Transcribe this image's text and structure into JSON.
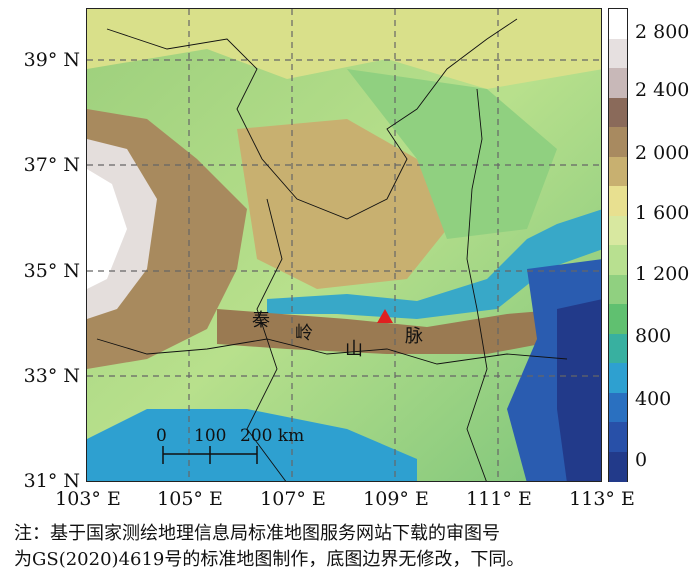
{
  "map": {
    "lat_labels": [
      "39° N",
      "37° N",
      "35° N",
      "33° N",
      "31° N"
    ],
    "lon_labels": [
      "103° E",
      "105° E",
      "107° E",
      "109° E",
      "111° E",
      "113° E"
    ],
    "range_chars": [
      "秦",
      "岭",
      "山",
      "脉"
    ],
    "marker": "red-triangle",
    "scale_labels": [
      "0",
      "100",
      "200 km"
    ]
  },
  "legend": {
    "labels": [
      "2 800",
      "2 400",
      "2 000",
      "1 600",
      "1 200",
      "800",
      "400",
      "0"
    ],
    "colors": [
      "#ffffff",
      "#e6e0e0",
      "#c8b8b8",
      "#8a6a5a",
      "#a88a60",
      "#c8b070",
      "#e8e090",
      "#d8e8a0",
      "#b8e090",
      "#90d080",
      "#60c070",
      "#38b0a0",
      "#2ea0d0",
      "#2a70c0",
      "#2850a8",
      "#223a8a"
    ]
  },
  "note": {
    "line1": "注：基于国家测绘地理信息局标准地图服务网站下载的审图号",
    "line2": "为GS(2020)4619号的标准地图制作，底图边界无修改，下同。"
  }
}
